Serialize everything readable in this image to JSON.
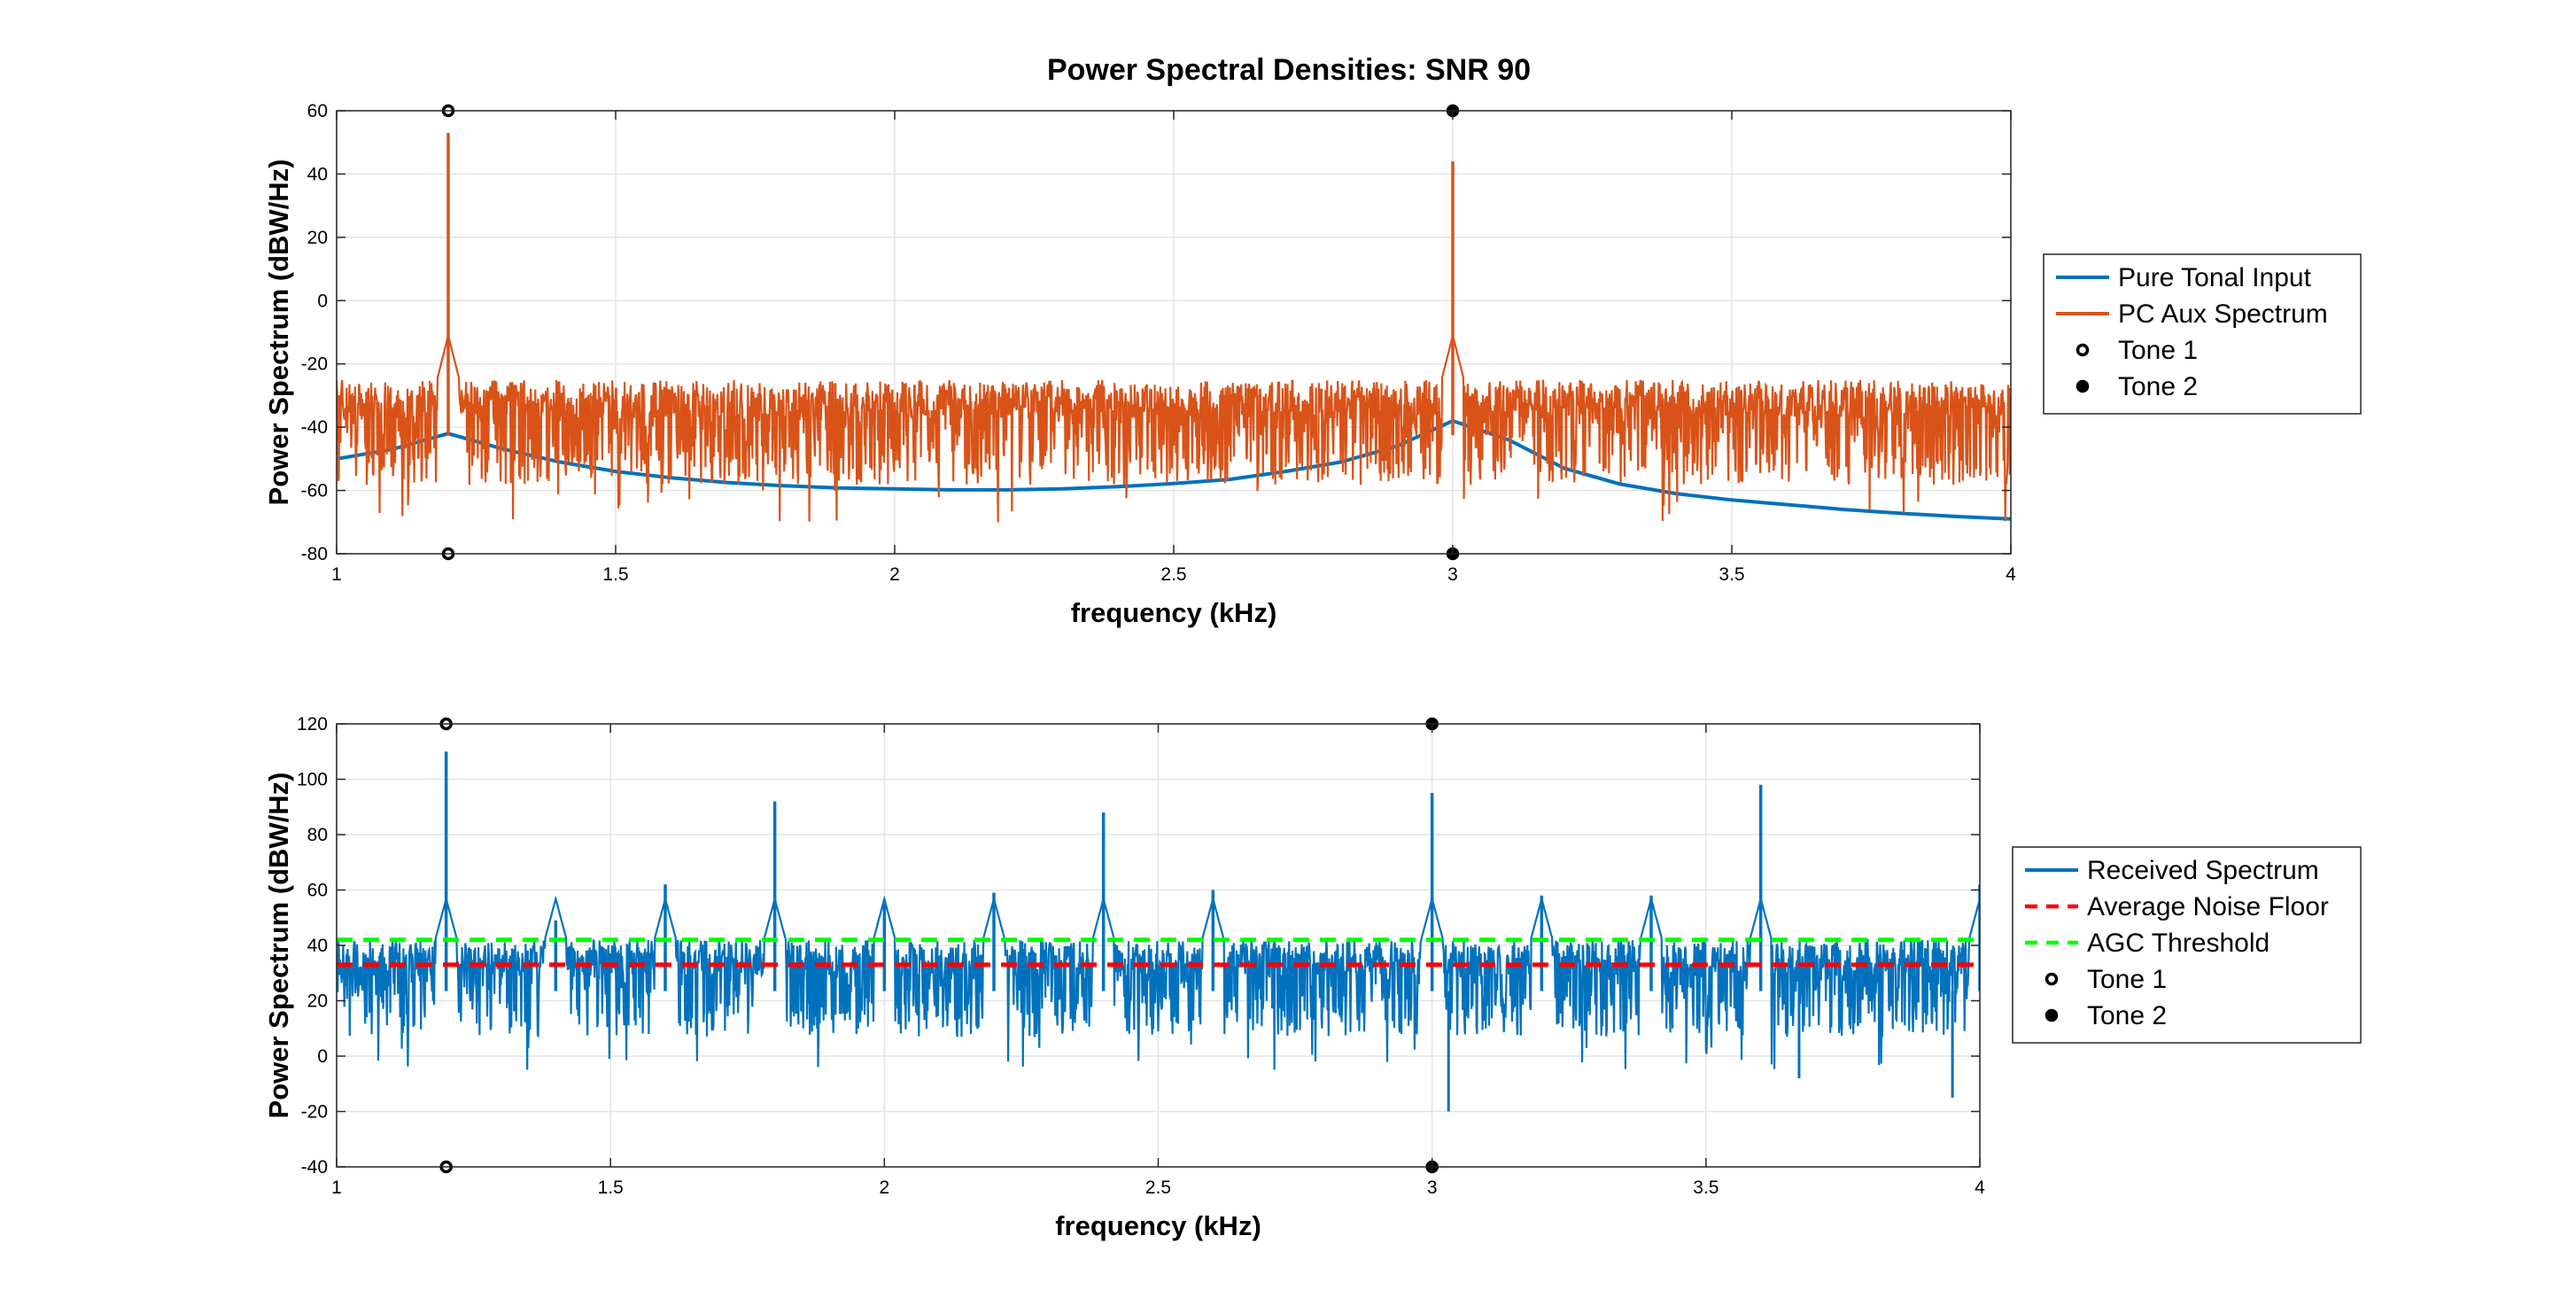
{
  "figure": {
    "title": "Power Spectral Densities: SNR 90"
  },
  "chart_data": [
    {
      "type": "line",
      "xlabel": "frequency (kHz)",
      "ylabel": "Power Spectrum (dBW/Hz)",
      "xlim": [
        1,
        4
      ],
      "ylim": [
        -80,
        60
      ],
      "xticks": [
        1,
        1.5,
        2,
        2.5,
        3,
        3.5,
        4
      ],
      "xtick_labels": [
        "1",
        "1.5",
        "2",
        "2.5",
        "3",
        "3.5",
        "4"
      ],
      "yticks": [
        -80,
        -60,
        -40,
        -20,
        0,
        20,
        40,
        60
      ],
      "ytick_labels": [
        "-80",
        "-60",
        "-40",
        "-20",
        "0",
        "20",
        "40",
        "60"
      ],
      "grid": true,
      "legend_position": "outside-right",
      "series": [
        {
          "name": "Pure Tonal Input",
          "kind": "line",
          "color": "#0072bd",
          "x": [
            1.0,
            1.1,
            1.2,
            1.3,
            1.4,
            1.5,
            1.6,
            1.7,
            1.8,
            1.9,
            2.0,
            2.1,
            2.2,
            2.3,
            2.4,
            2.5,
            2.6,
            2.7,
            2.8,
            2.9,
            3.0,
            3.1,
            3.2,
            3.3,
            3.4,
            3.5,
            3.6,
            3.7,
            3.8,
            3.9,
            4.0
          ],
          "y": [
            -50,
            -47,
            -42,
            -47,
            -51,
            -54,
            -56,
            -57.5,
            -58.5,
            -59.2,
            -59.5,
            -59.8,
            -59.8,
            -59.5,
            -58.8,
            -57.8,
            -56.5,
            -54,
            -51,
            -46,
            -38,
            -44,
            -53,
            -58,
            -61,
            -63,
            -64.5,
            -66,
            -67.2,
            -68.2,
            -69
          ]
        },
        {
          "name": "PC Aux Spectrum",
          "kind": "noise",
          "color": "#d95319",
          "noise_range": [
            -60,
            -25
          ],
          "peaks": [
            {
              "x": 1.2,
              "y": 53
            },
            {
              "x": 3.0,
              "y": 44
            }
          ]
        },
        {
          "name": "Tone 1",
          "kind": "marker",
          "marker": "open-circle",
          "color": "#000000",
          "points": [
            {
              "x": 1.2,
              "y": 60
            },
            {
              "x": 1.2,
              "y": -80
            }
          ]
        },
        {
          "name": "Tone 2",
          "kind": "marker",
          "marker": "filled-circle",
          "color": "#000000",
          "points": [
            {
              "x": 3.0,
              "y": 60
            },
            {
              "x": 3.0,
              "y": -80
            }
          ]
        }
      ]
    },
    {
      "type": "line",
      "xlabel": "frequency (kHz)",
      "ylabel": "Power Spectrum (dBW/Hz)",
      "xlim": [
        1,
        4
      ],
      "ylim": [
        -40,
        120
      ],
      "xticks": [
        1,
        1.5,
        2,
        2.5,
        3,
        3.5,
        4
      ],
      "xtick_labels": [
        "1",
        "1.5",
        "2",
        "2.5",
        "3",
        "3.5",
        "4"
      ],
      "yticks": [
        -40,
        -20,
        0,
        20,
        40,
        60,
        80,
        100,
        120
      ],
      "ytick_labels": [
        "-40",
        "-20",
        "0",
        "20",
        "40",
        "60",
        "80",
        "100",
        "120"
      ],
      "grid": true,
      "legend_position": "outside-right",
      "series": [
        {
          "name": "Received Spectrum",
          "kind": "noise",
          "color": "#0072bd",
          "noise_range": [
            5,
            42
          ],
          "peaks": [
            {
              "x": 1.2,
              "y": 110
            },
            {
              "x": 1.4,
              "y": 49
            },
            {
              "x": 1.6,
              "y": 62
            },
            {
              "x": 1.8,
              "y": 92
            },
            {
              "x": 2.0,
              "y": 55
            },
            {
              "x": 2.2,
              "y": 59
            },
            {
              "x": 2.4,
              "y": 88
            },
            {
              "x": 2.6,
              "y": 60
            },
            {
              "x": 3.0,
              "y": 95
            },
            {
              "x": 3.2,
              "y": 58
            },
            {
              "x": 3.4,
              "y": 58
            },
            {
              "x": 3.6,
              "y": 98
            },
            {
              "x": 4.0,
              "y": 62
            }
          ],
          "dips": [
            {
              "x": 3.03,
              "y": -20
            },
            {
              "x": 3.67,
              "y": -8
            },
            {
              "x": 3.95,
              "y": -15
            }
          ]
        },
        {
          "name": "Average Noise Floor",
          "kind": "hline",
          "style": "dashed",
          "color": "#ff0000",
          "y": 33
        },
        {
          "name": "AGC Threshold",
          "kind": "hline",
          "style": "dashed",
          "color": "#00ff00",
          "y": 42
        },
        {
          "name": "Tone 1",
          "kind": "marker",
          "marker": "open-circle",
          "color": "#000000",
          "points": [
            {
              "x": 1.2,
              "y": 120
            },
            {
              "x": 1.2,
              "y": -40
            }
          ]
        },
        {
          "name": "Tone 2",
          "kind": "marker",
          "marker": "filled-circle",
          "color": "#000000",
          "points": [
            {
              "x": 3.0,
              "y": 120
            },
            {
              "x": 3.0,
              "y": -40
            }
          ]
        }
      ]
    }
  ]
}
